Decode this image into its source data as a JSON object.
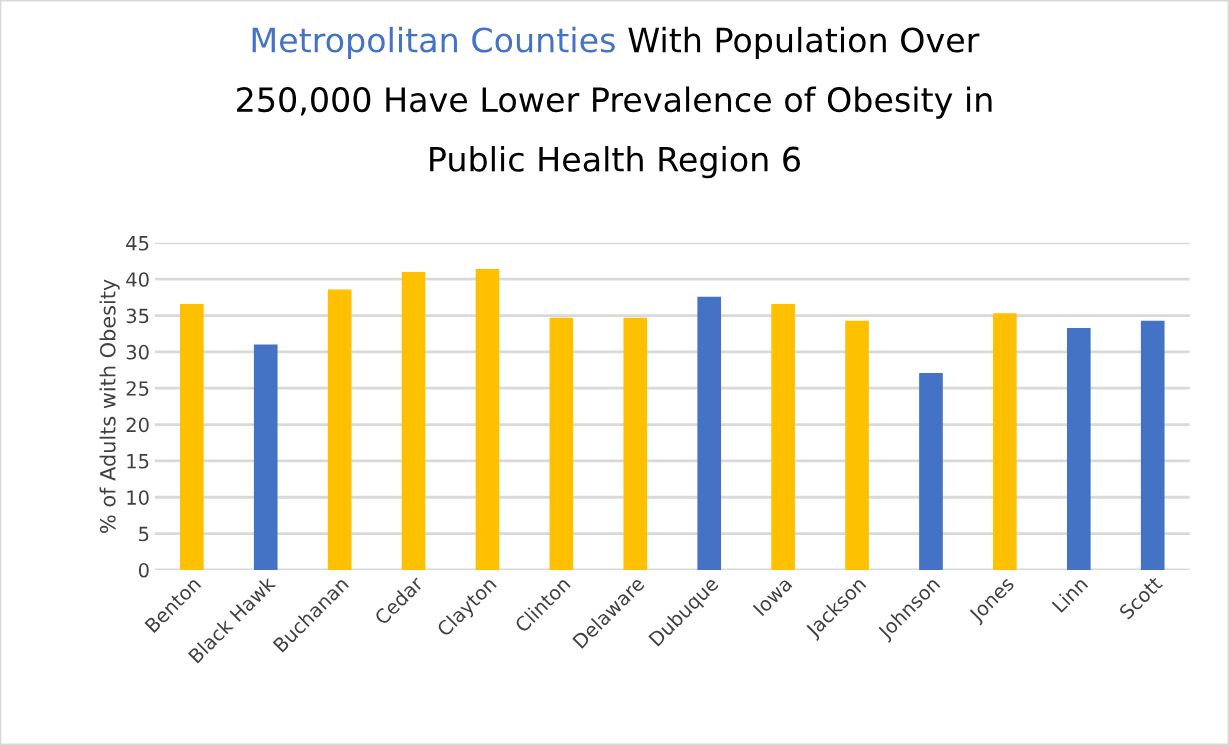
{
  "chart_data": {
    "type": "bar",
    "title": "With Population Over\n250,000 Have Lower Prevalence of Obesity in\nPublic Health Region 6",
    "ylabel": "% of Adults with Obesity",
    "categories": [
      "Benton",
      "Black Hawk",
      "Buchanan",
      "Cedar",
      "Clayton",
      "Clinton",
      "Delaware",
      "Dubuque",
      "Iowa",
      "Jackson",
      "Johnson",
      "Jones",
      "Linn",
      "Scott"
    ],
    "series": [
      {
        "name": "Metropolitan Counties",
        "color": "#4472c4",
        "values": [
          null,
          31.0,
          null,
          null,
          null,
          null,
          null,
          37.6,
          null,
          null,
          27.1,
          null,
          33.3,
          34.3
        ]
      },
      {
        "color": "#ffc000",
        "values": [
          36.6,
          null,
          38.6,
          41.0,
          41.4,
          34.7,
          34.7,
          null,
          36.6,
          34.3,
          null,
          35.3,
          null,
          null
        ]
      }
    ],
    "ylim": [
      0,
      45
    ],
    "yticks": [
      0,
      5,
      10,
      15,
      20,
      25,
      30,
      35,
      40,
      45
    ],
    "grid": "y",
    "legend": false
  }
}
